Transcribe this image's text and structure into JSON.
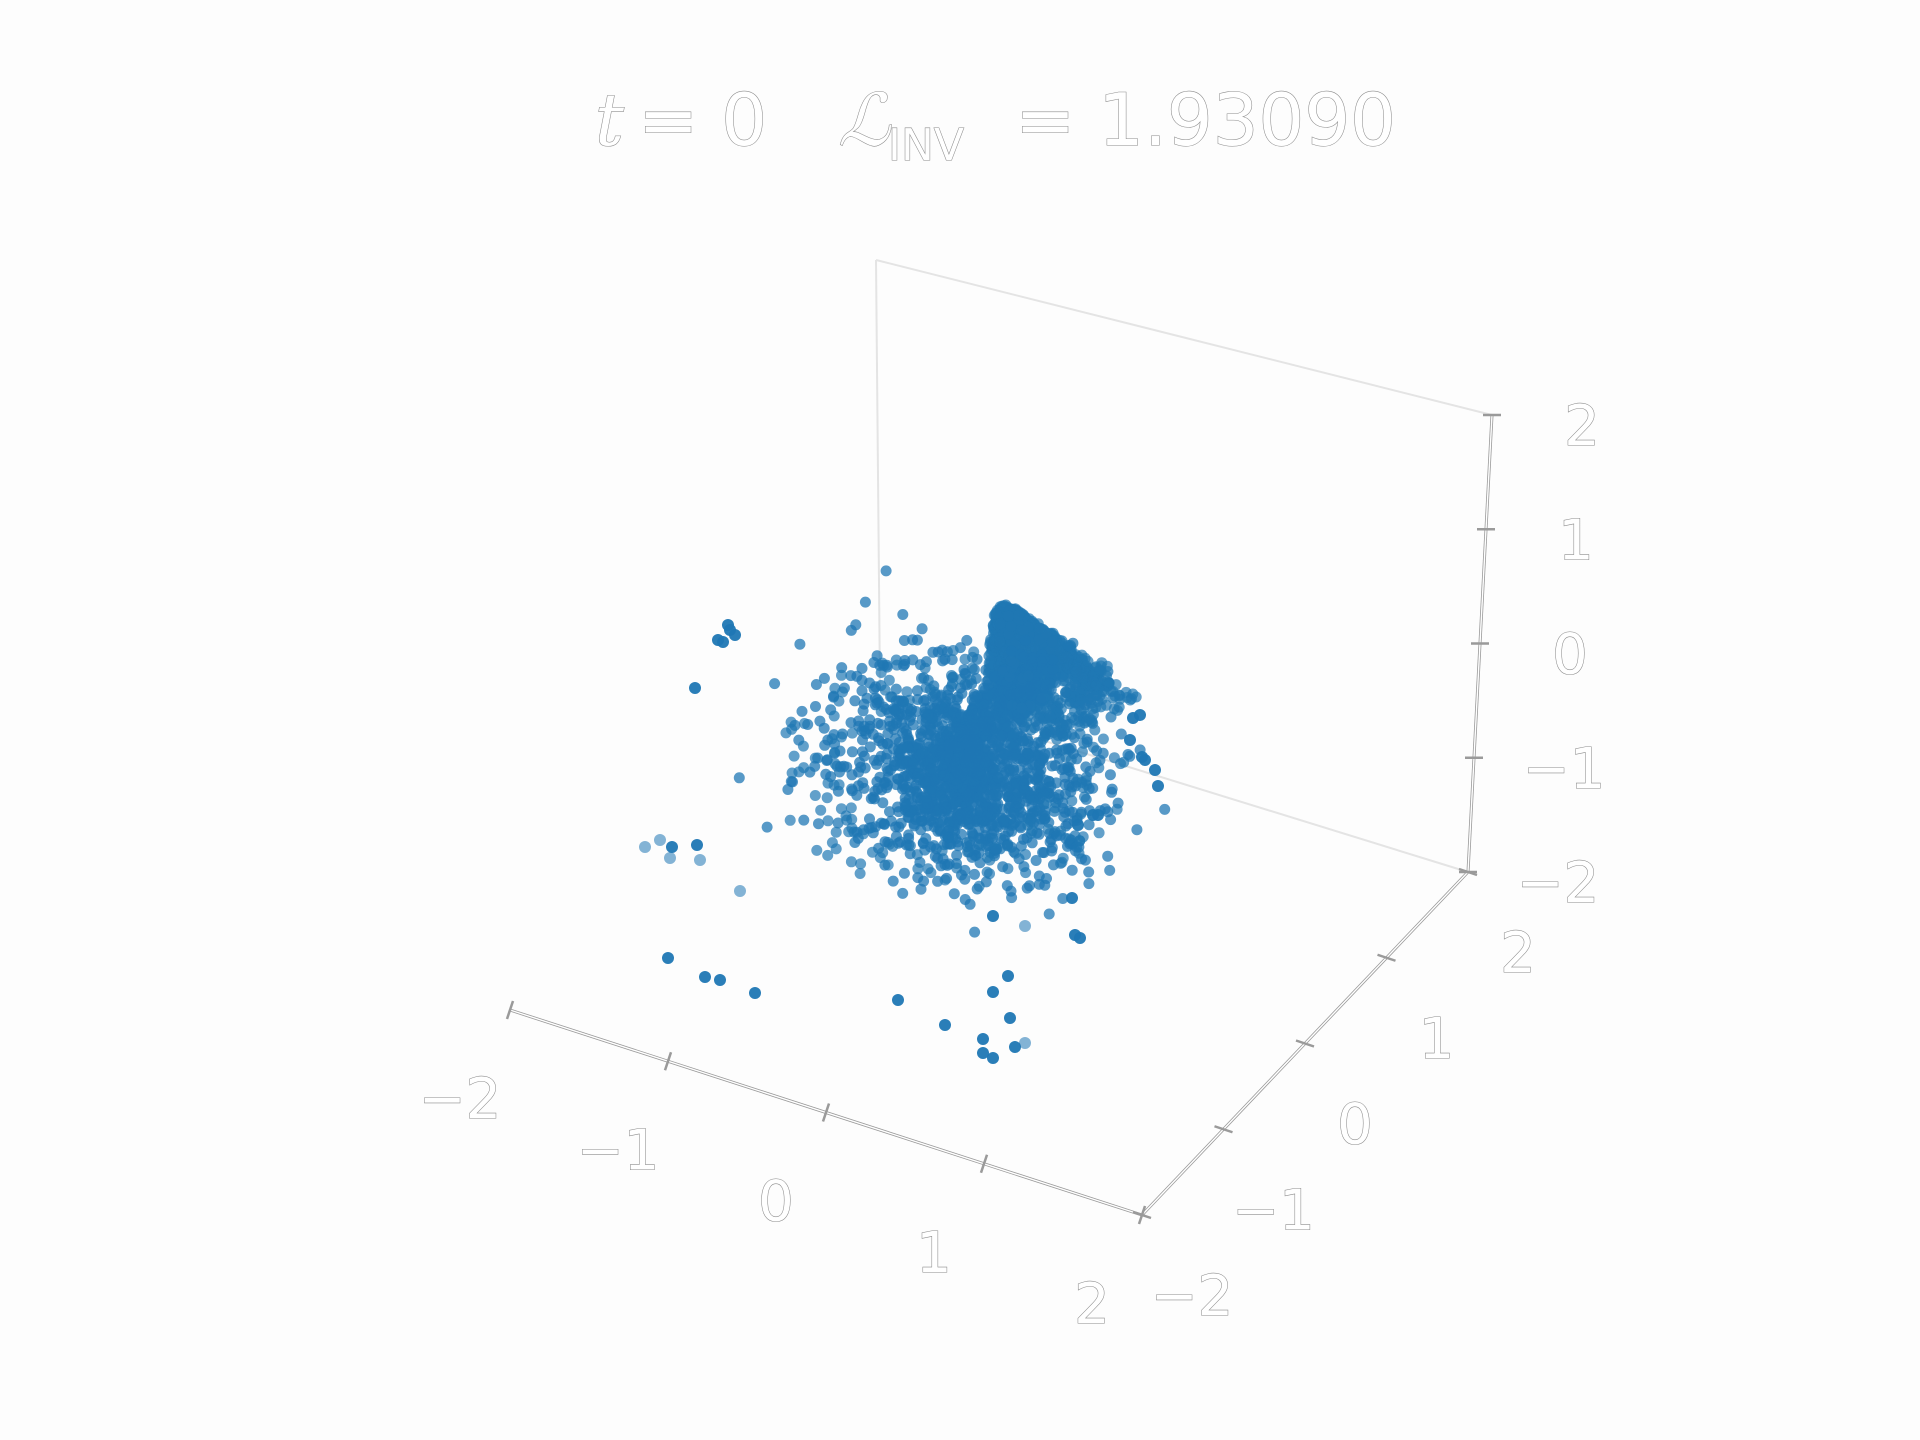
{
  "chart_data": {
    "type": "scatter",
    "projection": "3d",
    "title": {
      "t_label": "t",
      "t_equals": "= 0",
      "loss_symbol": "ℒ",
      "loss_subscript": "INV",
      "loss_equals": "= 1.93090"
    },
    "x_axis": {
      "ticks": [
        "−2",
        "−1",
        "0",
        "1",
        "2"
      ],
      "range": [
        -2,
        2
      ]
    },
    "y_axis": {
      "ticks": [
        "−2",
        "−1",
        "0",
        "1",
        "2"
      ],
      "range": [
        -2,
        2
      ]
    },
    "z_axis": {
      "ticks": [
        "−2",
        "−1",
        "0",
        "1",
        "2"
      ],
      "range": [
        -2,
        2
      ]
    },
    "grid": false,
    "marker_color": "#1f77b4",
    "marker_alpha": 0.65,
    "clusters": [
      {
        "name": "dense-cone",
        "center": [
          0.25,
          -0.2,
          0.1
        ],
        "approx_points": 1600,
        "description_note": ""
      }
    ],
    "points_xyz": [
      [
        -1.2,
        0.2,
        -0.9
      ],
      [
        -1.0,
        0.1,
        -0.95
      ],
      [
        -0.95,
        0.15,
        -0.85
      ],
      [
        -0.5,
        -1.2,
        -0.2
      ],
      [
        -0.3,
        -1.4,
        -0.5
      ],
      [
        -0.2,
        -1.4,
        -0.55
      ],
      [
        0.0,
        -1.35,
        -0.55
      ],
      [
        0.7,
        -0.6,
        -1.5
      ],
      [
        0.9,
        -0.5,
        -1.6
      ],
      [
        1.0,
        -0.6,
        -1.5
      ],
      [
        1.1,
        -0.55,
        -1.55
      ],
      [
        1.05,
        -0.6,
        -1.6
      ],
      [
        1.3,
        0.1,
        -1.2
      ],
      [
        1.35,
        0.2,
        -1.25
      ],
      [
        1.45,
        0.6,
        -1.1
      ],
      [
        1.5,
        0.7,
        -0.95
      ],
      [
        1.3,
        1.3,
        -0.3
      ],
      [
        1.35,
        1.25,
        -0.25
      ],
      [
        -0.9,
        -0.2,
        0.85
      ],
      [
        -0.85,
        -0.15,
        0.9
      ],
      [
        -1.0,
        -0.3,
        0.55
      ]
    ]
  }
}
